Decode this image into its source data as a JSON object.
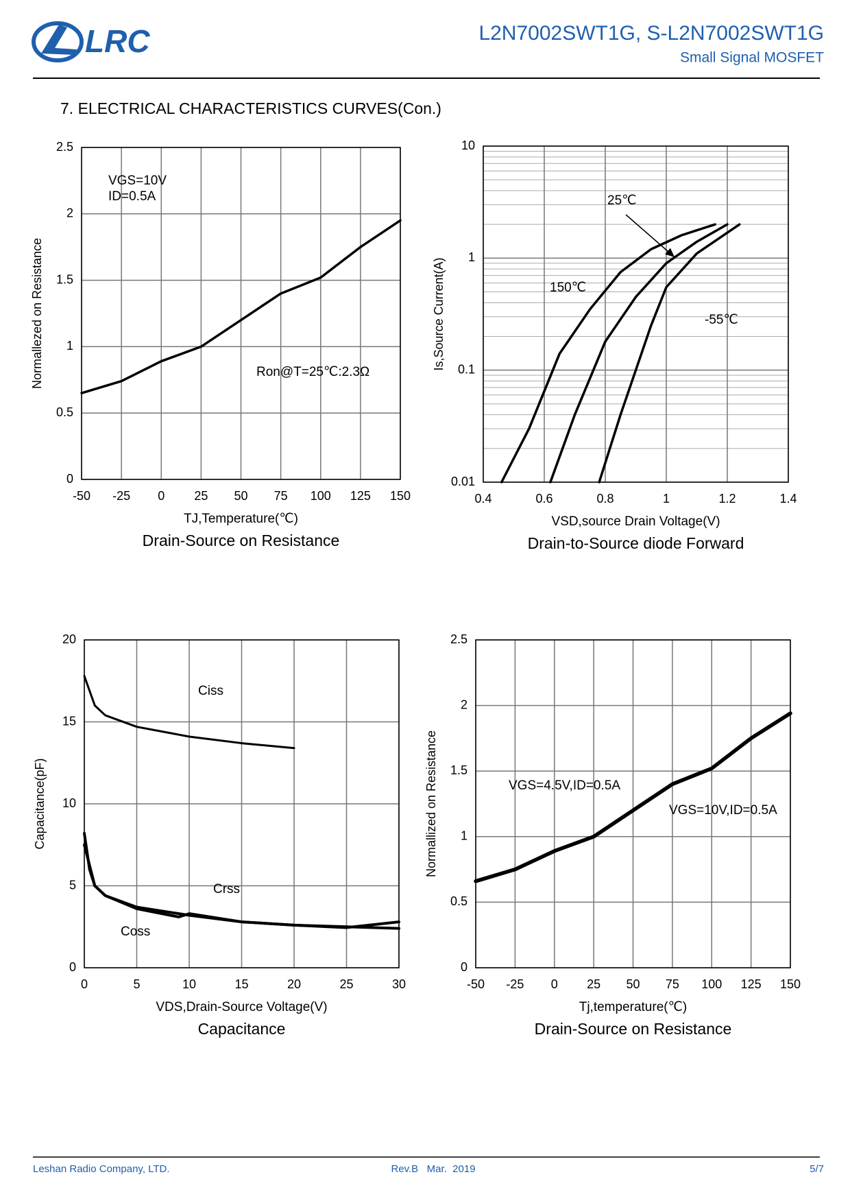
{
  "header": {
    "logo": "LRC",
    "title": "L2N7002SWT1G, S-L2N7002SWT1G",
    "subtitle": "Small Signal MOSFET"
  },
  "section_title": "7. ELECTRICAL CHARACTERISTICS CURVES(Con.)",
  "chart_data": [
    {
      "type": "line",
      "title": "Drain-Source on Resistance",
      "x_label": "TJ,Temperature(℃)",
      "y_label": "Normallezed on Resistance",
      "annotations": [
        "VGS=10V",
        "ID=0.5A",
        "Ron@T=25℃:2.3Ω"
      ],
      "xlim": [
        -50,
        150
      ],
      "xticks": [
        -50,
        -25,
        0,
        25,
        50,
        75,
        100,
        125,
        150
      ],
      "ylim": [
        0,
        2.5
      ],
      "yticks": [
        0,
        0.5,
        1,
        1.5,
        2,
        2.5
      ],
      "grid": true,
      "log_y": false,
      "series": [
        {
          "color": "#000000",
          "x": [
            -50,
            -25,
            0,
            25,
            50,
            75,
            100,
            125,
            150
          ],
          "values": [
            0.65,
            0.74,
            0.89,
            1.0,
            1.2,
            1.4,
            1.52,
            1.75,
            1.95
          ]
        }
      ]
    },
    {
      "type": "line",
      "title": "Drain-to-Source diode Forward",
      "x_label": "VSD,source Drain Voltage(V)",
      "y_label": "Is,Source Current(A)",
      "annotations": [],
      "xlim": [
        0.4,
        1.4
      ],
      "xticks": [
        0.4,
        0.6,
        0.8,
        1,
        1.2,
        1.4
      ],
      "ylim": [
        0.01,
        10
      ],
      "yticks": [
        0.01,
        0.1,
        1,
        10
      ],
      "grid": true,
      "log_y": true,
      "series": [
        {
          "name": "150℃",
          "color": "#000000",
          "x": [
            0.46,
            0.55,
            0.65,
            0.75,
            0.85,
            0.95,
            1.05,
            1.16
          ],
          "values": [
            0.01,
            0.03,
            0.14,
            0.35,
            0.75,
            1.2,
            1.6,
            2.0
          ]
        },
        {
          "name": "25℃",
          "color": "#000000",
          "x": [
            0.62,
            0.7,
            0.8,
            0.9,
            1.0,
            1.1,
            1.2
          ],
          "values": [
            0.01,
            0.04,
            0.18,
            0.45,
            0.9,
            1.4,
            2.0
          ]
        },
        {
          "name": "-55℃",
          "color": "#000000",
          "x": [
            0.78,
            0.85,
            0.9,
            0.95,
            1.0,
            1.1,
            1.24
          ],
          "values": [
            0.01,
            0.04,
            0.1,
            0.25,
            0.55,
            1.1,
            2.0
          ]
        }
      ]
    },
    {
      "type": "line",
      "title": "Capacitance",
      "x_label": "VDS,Drain-Source Voltage(V)",
      "y_label": "Capacitance(pF)",
      "annotations": [],
      "xlim": [
        0,
        30
      ],
      "xticks": [
        0,
        5,
        10,
        15,
        20,
        25,
        30
      ],
      "ylim": [
        0,
        20
      ],
      "yticks": [
        0,
        5,
        10,
        15,
        20
      ],
      "grid": true,
      "log_y": false,
      "series": [
        {
          "name": "Ciss",
          "color": "#000000",
          "x": [
            0,
            1,
            2,
            5,
            10,
            15,
            20
          ],
          "values": [
            17.8,
            16,
            15.4,
            14.7,
            14.1,
            13.7,
            13.4
          ]
        },
        {
          "name": "Crss",
          "color": "#000000",
          "x": [
            0,
            1,
            2,
            5,
            9,
            10,
            15,
            20,
            25,
            30
          ],
          "values": [
            7.5,
            5,
            4.4,
            3.6,
            3.1,
            3.3,
            2.8,
            2.6,
            2.5,
            2.4
          ]
        },
        {
          "name": "Coss",
          "color": "#000000",
          "x": [
            0,
            0.5,
            1,
            2,
            5,
            10,
            15,
            20,
            25,
            30
          ],
          "values": [
            8.2,
            6,
            5,
            4.4,
            3.7,
            3.2,
            2.8,
            2.6,
            2.45,
            2.8
          ]
        }
      ]
    },
    {
      "type": "line",
      "title": "Drain-Source on Resistance",
      "x_label": "Tj,temperature(℃)",
      "y_label": "Normallized on Resistance",
      "annotations": [
        "VGS=4.5V,ID=0.5A",
        "VGS=10V,ID=0.5A"
      ],
      "xlim": [
        -50,
        150
      ],
      "xticks": [
        -50,
        -25,
        0,
        25,
        50,
        75,
        100,
        125,
        150
      ],
      "ylim": [
        0,
        2.5
      ],
      "yticks": [
        0,
        0.5,
        1,
        1.5,
        2,
        2.5
      ],
      "grid": true,
      "log_y": false,
      "series": [
        {
          "color": "#000000",
          "x": [
            -50,
            -25,
            0,
            25,
            50,
            75,
            100,
            125,
            150
          ],
          "values": [
            0.66,
            0.75,
            0.89,
            1.0,
            1.2,
            1.4,
            1.52,
            1.75,
            1.94
          ]
        }
      ]
    }
  ],
  "footer": {
    "company": "Leshan Radio Company, LTD.",
    "revision": "Rev.B   Mar.  2019",
    "page": "5/7"
  }
}
